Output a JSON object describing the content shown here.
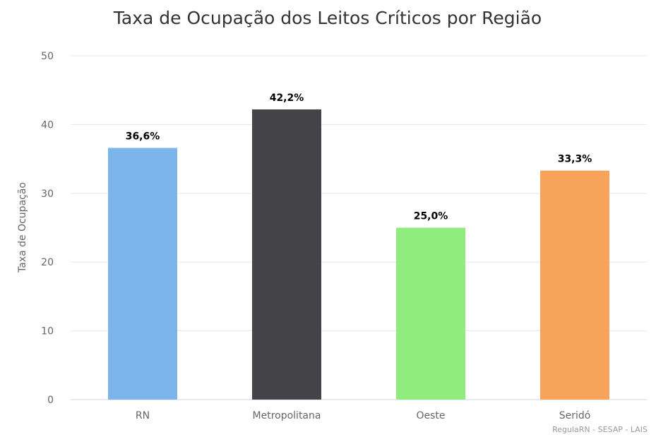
{
  "chart_data": {
    "type": "bar",
    "title": "Taxa de Ocupação dos Leitos Críticos por Região",
    "xlabel": "",
    "ylabel": "Taxa de Ocupação",
    "ylim": [
      0,
      50
    ],
    "yticks": [
      "0",
      "10",
      "20",
      "30",
      "40",
      "50"
    ],
    "grid": true,
    "categories": [
      "RN",
      "Metropolitana",
      "Oeste",
      "Seridó"
    ],
    "values": [
      36.6,
      42.2,
      25.0,
      33.3
    ],
    "data_labels": [
      "36,6%",
      "42,2%",
      "25,0%",
      "33,3%"
    ],
    "colors": [
      "#7cb5ec",
      "#434348",
      "#90ed7d",
      "#f7a35c"
    ],
    "credits": "RegulaRN - SESAP - LAIS"
  }
}
